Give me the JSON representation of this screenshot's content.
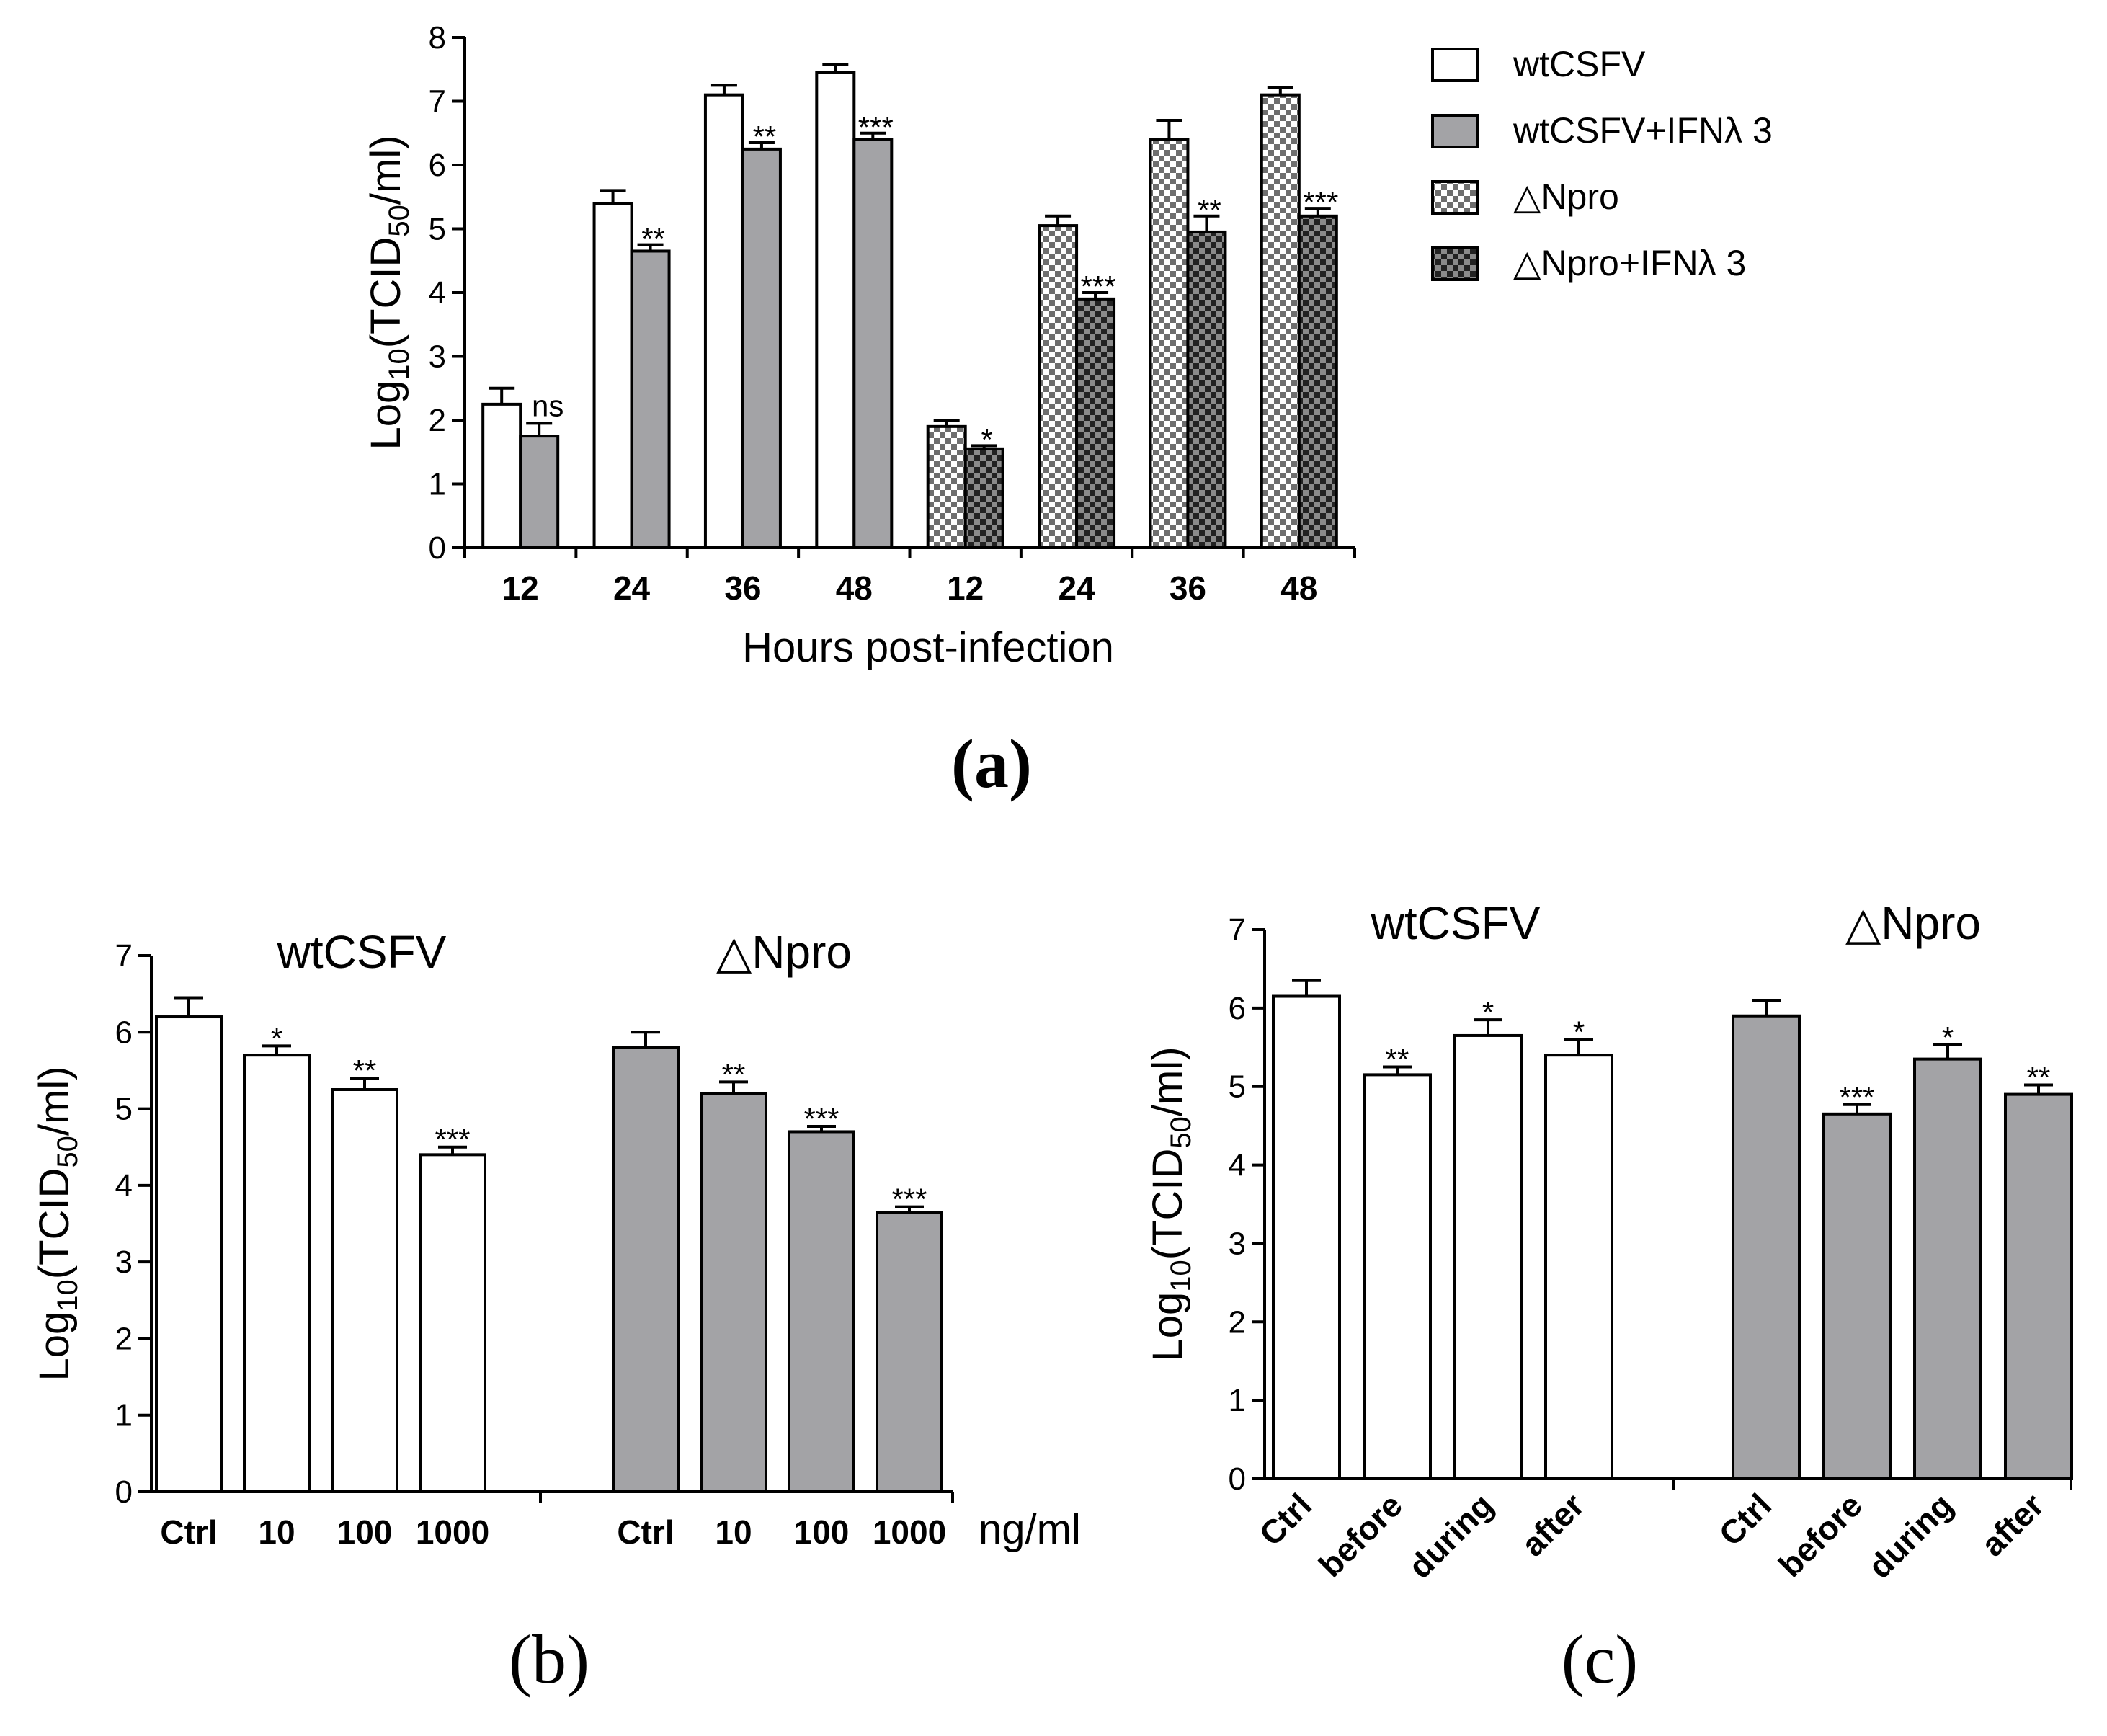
{
  "chart_data": [
    {
      "panel": "a",
      "panel_label": "(a)",
      "type": "bar",
      "categories": [
        "12",
        "24",
        "36",
        "48",
        "12",
        "24",
        "36",
        "48"
      ],
      "xlabel": "Hours post-infection",
      "ylabel": {
        "main": "Log",
        "sub": "10",
        "rest": "(TCID",
        "sub2": "50",
        "tail": "/ml)"
      },
      "ylim": [
        0,
        8
      ],
      "yticks": [
        "0",
        "1",
        "2",
        "3",
        "4",
        "5",
        "6",
        "7",
        "8"
      ],
      "legend_position": "top-right",
      "legend": [
        {
          "label": "wtCSFV",
          "fill": "white"
        },
        {
          "label": "wtCSFV+IFNλ 3",
          "fill": "gray"
        },
        {
          "label": "△Npro",
          "fill": "checker"
        },
        {
          "label": "△Npro+IFNλ 3",
          "fill": "darkchecker"
        }
      ],
      "bars": [
        {
          "category_index": 0,
          "series": "wtCSFV",
          "value": 2.25,
          "error": 0.25,
          "sig": ""
        },
        {
          "category_index": 0,
          "series": "wtCSFV+IFNλ 3",
          "value": 1.75,
          "error": 0.2,
          "sig": "ns"
        },
        {
          "category_index": 1,
          "series": "wtCSFV",
          "value": 5.4,
          "error": 0.2,
          "sig": ""
        },
        {
          "category_index": 1,
          "series": "wtCSFV+IFNλ 3",
          "value": 4.65,
          "error": 0.1,
          "sig": "**"
        },
        {
          "category_index": 2,
          "series": "wtCSFV",
          "value": 7.1,
          "error": 0.15,
          "sig": ""
        },
        {
          "category_index": 2,
          "series": "wtCSFV+IFNλ 3",
          "value": 6.25,
          "error": 0.1,
          "sig": "**"
        },
        {
          "category_index": 3,
          "series": "wtCSFV",
          "value": 7.45,
          "error": 0.12,
          "sig": ""
        },
        {
          "category_index": 3,
          "series": "wtCSFV+IFNλ 3",
          "value": 6.4,
          "error": 0.1,
          "sig": "***"
        },
        {
          "category_index": 4,
          "series": "△Npro",
          "value": 1.9,
          "error": 0.1,
          "sig": ""
        },
        {
          "category_index": 4,
          "series": "△Npro+IFNλ 3",
          "value": 1.55,
          "error": 0.05,
          "sig": "*"
        },
        {
          "category_index": 5,
          "series": "△Npro",
          "value": 5.05,
          "error": 0.15,
          "sig": ""
        },
        {
          "category_index": 5,
          "series": "△Npro+IFNλ 3",
          "value": 3.9,
          "error": 0.1,
          "sig": "***"
        },
        {
          "category_index": 6,
          "series": "△Npro",
          "value": 6.4,
          "error": 0.3,
          "sig": ""
        },
        {
          "category_index": 6,
          "series": "△Npro+IFNλ 3",
          "value": 4.95,
          "error": 0.25,
          "sig": "**"
        },
        {
          "category_index": 7,
          "series": "△Npro",
          "value": 7.1,
          "error": 0.12,
          "sig": ""
        },
        {
          "category_index": 7,
          "series": "△Npro+IFNλ 3",
          "value": 5.2,
          "error": 0.12,
          "sig": "***"
        }
      ]
    },
    {
      "panel": "b",
      "panel_label": "(b)",
      "type": "bar",
      "ylabel": {
        "main": "Log",
        "sub": "10",
        "rest": "(TCID",
        "sub2": "50",
        "tail": "/ml)"
      },
      "ylim": [
        0,
        7
      ],
      "yticks": [
        "0",
        "1",
        "2",
        "3",
        "4",
        "5",
        "6",
        "7"
      ],
      "unit_label": "ng/ml",
      "groups": [
        {
          "title": "wtCSFV",
          "fill": "white",
          "categories": [
            "Ctrl",
            "10",
            "100",
            "1000"
          ],
          "values": [
            6.2,
            5.7,
            5.25,
            4.4
          ],
          "errors": [
            0.25,
            0.12,
            0.15,
            0.1
          ],
          "sig": [
            "",
            "*",
            "**",
            "***"
          ]
        },
        {
          "title": "△Npro",
          "fill": "gray",
          "categories": [
            "Ctrl",
            "10",
            "100",
            "1000"
          ],
          "values": [
            5.8,
            5.2,
            4.7,
            3.65
          ],
          "errors": [
            0.2,
            0.15,
            0.07,
            0.07
          ],
          "sig": [
            "",
            "**",
            "***",
            "***"
          ]
        }
      ]
    },
    {
      "panel": "c",
      "panel_label": "(c)",
      "type": "bar",
      "ylabel": {
        "main": "Log",
        "sub": "10",
        "rest": "(TCID",
        "sub2": "50",
        "tail": "/ml)"
      },
      "ylim": [
        0,
        7
      ],
      "yticks": [
        "0",
        "1",
        "2",
        "3",
        "4",
        "5",
        "6",
        "7"
      ],
      "groups": [
        {
          "title": "wtCSFV",
          "fill": "white",
          "categories": [
            "Ctrl",
            "before",
            "during",
            "after"
          ],
          "values": [
            6.15,
            5.15,
            5.65,
            5.4
          ],
          "errors": [
            0.2,
            0.1,
            0.2,
            0.2
          ],
          "sig": [
            "",
            "**",
            "*",
            "*"
          ]
        },
        {
          "title": "△Npro",
          "fill": "gray",
          "categories": [
            "Ctrl",
            "before",
            "during",
            "after"
          ],
          "values": [
            5.9,
            4.65,
            5.35,
            4.9
          ],
          "errors": [
            0.2,
            0.12,
            0.18,
            0.12
          ],
          "sig": [
            "",
            "***",
            "*",
            "**"
          ]
        }
      ]
    }
  ],
  "colors": {
    "gray_fill": "#a3a3a6",
    "checker_light": "#d8d8d8",
    "checker_dark": "#6e6e6e",
    "axis": "#000000"
  }
}
